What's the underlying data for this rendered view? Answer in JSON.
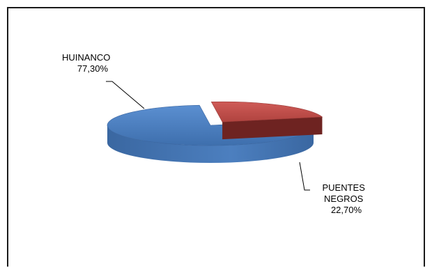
{
  "chart_data": {
    "type": "pie",
    "title": "",
    "legend": "none",
    "style": "3d-exploded",
    "slices": [
      {
        "name": "HUINANCO",
        "value": 77.3,
        "label": "77,30%",
        "color": "#4a7ebb"
      },
      {
        "name": "PUENTES NEGROS",
        "name_lines": [
          "PUENTES",
          "NEGROS"
        ],
        "value": 22.7,
        "label": "22,70%",
        "color": "#c0504d"
      }
    ]
  }
}
